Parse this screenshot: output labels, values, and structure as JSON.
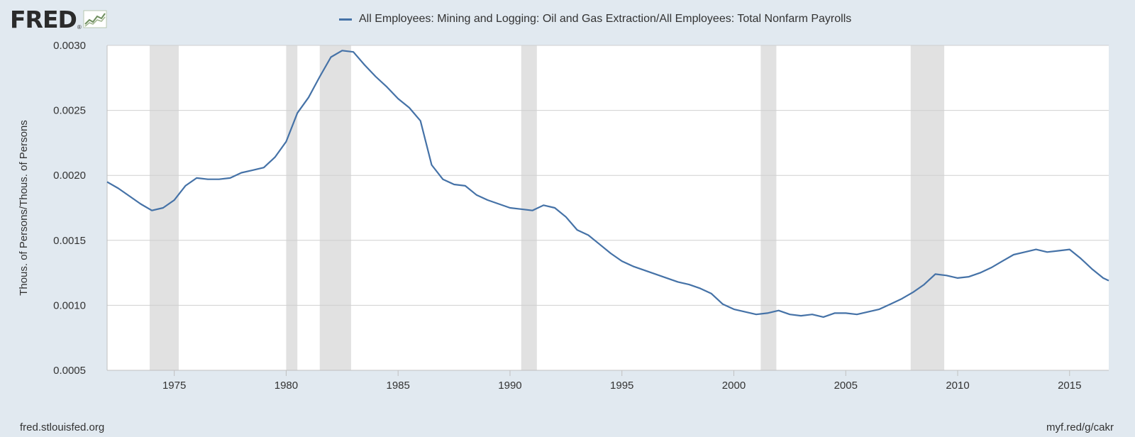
{
  "logo": {
    "text": "FRED",
    "reg": "®",
    "icon": "fred-chart-logo-icon"
  },
  "colors": {
    "series": "#4572a7",
    "recession": "#e1e1e1",
    "grid": "#d0d0d0",
    "background": "#e1e9f0",
    "plot": "#ffffff"
  },
  "footer": {
    "left": "fred.stlouisfed.org",
    "right": "myf.red/g/cakr"
  },
  "chart_data": {
    "type": "line",
    "title": "",
    "xlabel": "",
    "ylabel": "Thous. of Persons/Thous. of Persons",
    "xlim": [
      1972.0,
      2016.75
    ],
    "ylim": [
      0.0005,
      0.003
    ],
    "yticks": [
      0.0005,
      0.001,
      0.0015,
      0.002,
      0.0025,
      0.003
    ],
    "ytick_labels": [
      "0.0005",
      "0.0010",
      "0.0015",
      "0.0020",
      "0.0025",
      "0.0030"
    ],
    "xticks": [
      1975,
      1980,
      1985,
      1990,
      1995,
      2000,
      2005,
      2010,
      2015
    ],
    "xtick_labels": [
      "1975",
      "1980",
      "1985",
      "1990",
      "1995",
      "2000",
      "2005",
      "2010",
      "2015"
    ],
    "grid": true,
    "legend_position": "top-center",
    "recessions": [
      [
        1973.9,
        1975.2
      ],
      [
        1980.0,
        1980.5
      ],
      [
        1981.5,
        1982.9
      ],
      [
        1990.5,
        1991.2
      ],
      [
        2001.2,
        2001.9
      ],
      [
        2007.9,
        2009.4
      ]
    ],
    "series": [
      {
        "name": "All Employees: Mining and Logging: Oil and Gas Extraction/All Employees: Total Nonfarm Payrolls",
        "x": [
          1972.0,
          1972.5,
          1973.0,
          1973.5,
          1974.0,
          1974.5,
          1975.0,
          1975.5,
          1976.0,
          1976.5,
          1977.0,
          1977.5,
          1978.0,
          1978.5,
          1979.0,
          1979.5,
          1980.0,
          1980.5,
          1981.0,
          1981.5,
          1982.0,
          1982.5,
          1983.0,
          1983.5,
          1984.0,
          1984.5,
          1985.0,
          1985.5,
          1986.0,
          1986.5,
          1987.0,
          1987.5,
          1988.0,
          1988.5,
          1989.0,
          1989.5,
          1990.0,
          1990.5,
          1991.0,
          1991.5,
          1992.0,
          1992.5,
          1993.0,
          1993.5,
          1994.0,
          1994.5,
          1995.0,
          1995.5,
          1996.0,
          1996.5,
          1997.0,
          1997.5,
          1998.0,
          1998.5,
          1999.0,
          1999.5,
          2000.0,
          2000.5,
          2001.0,
          2001.5,
          2002.0,
          2002.5,
          2003.0,
          2003.5,
          2004.0,
          2004.5,
          2005.0,
          2005.5,
          2006.0,
          2006.5,
          2007.0,
          2007.5,
          2008.0,
          2008.5,
          2009.0,
          2009.5,
          2010.0,
          2010.5,
          2011.0,
          2011.5,
          2012.0,
          2012.5,
          2013.0,
          2013.5,
          2014.0,
          2014.5,
          2015.0,
          2015.5,
          2016.0,
          2016.5,
          2016.75
        ],
        "y": [
          0.00195,
          0.0019,
          0.00184,
          0.00178,
          0.00173,
          0.00175,
          0.00181,
          0.00192,
          0.00198,
          0.00197,
          0.00197,
          0.00198,
          0.00202,
          0.00204,
          0.00206,
          0.00214,
          0.00226,
          0.00248,
          0.0026,
          0.00276,
          0.00291,
          0.00296,
          0.00295,
          0.00285,
          0.00276,
          0.00268,
          0.00259,
          0.00252,
          0.00242,
          0.00208,
          0.00197,
          0.00193,
          0.00192,
          0.00185,
          0.00181,
          0.00178,
          0.00175,
          0.00174,
          0.00173,
          0.00177,
          0.00175,
          0.00168,
          0.00158,
          0.00154,
          0.00147,
          0.0014,
          0.00134,
          0.0013,
          0.00127,
          0.00124,
          0.00121,
          0.00118,
          0.00116,
          0.00113,
          0.00109,
          0.00101,
          0.00097,
          0.00095,
          0.00093,
          0.00094,
          0.00096,
          0.00093,
          0.00092,
          0.00093,
          0.00091,
          0.00094,
          0.00094,
          0.00093,
          0.00095,
          0.00097,
          0.00101,
          0.00105,
          0.0011,
          0.00116,
          0.00124,
          0.00123,
          0.00121,
          0.00122,
          0.00125,
          0.00129,
          0.00134,
          0.00139,
          0.00141,
          0.00143,
          0.00141,
          0.00142,
          0.00143,
          0.00136,
          0.00128,
          0.00121,
          0.00119
        ]
      }
    ]
  }
}
